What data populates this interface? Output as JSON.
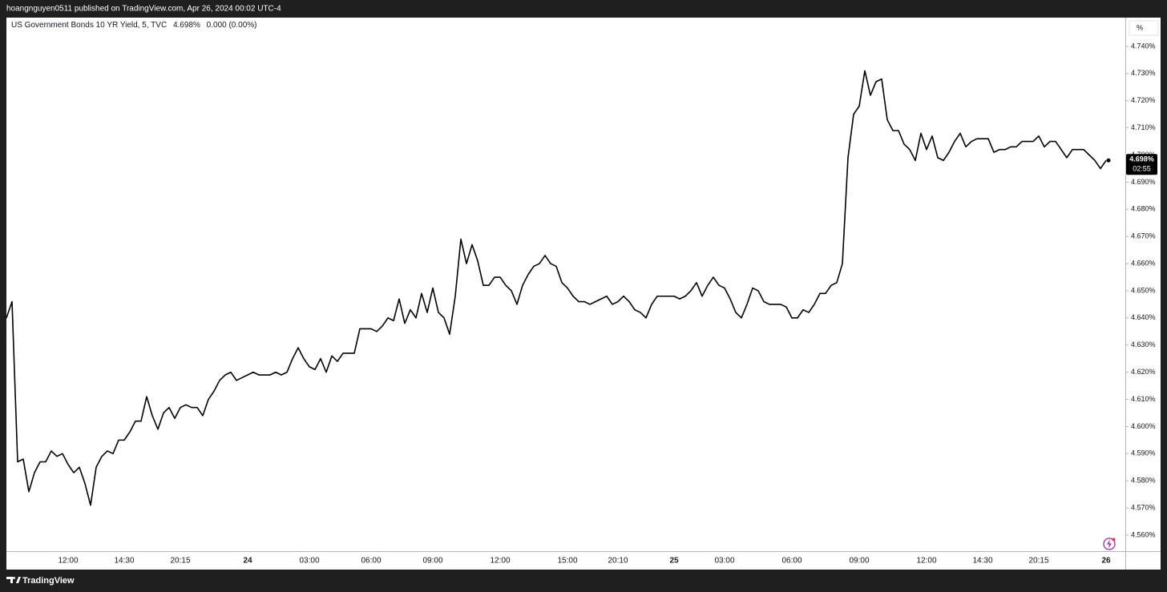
{
  "header": {
    "text": "hoangnguyen0511 published on TradingView.com, Apr 26, 2024 00:02 UTC-4"
  },
  "footer": {
    "brand": "TradingView"
  },
  "chart_data": {
    "type": "line",
    "title": "US Government Bonds 10 YR Yield, 5, TVC",
    "legend_value": "4.698%",
    "legend_change": "0.000 (0.00%)",
    "price_label": "4.698%",
    "countdown": "02:55",
    "y_unit": "%",
    "color": "#000000",
    "grid": false,
    "ylim": [
      4.5541,
      4.7506
    ],
    "yticks": [
      {
        "value": 4.56,
        "label": "4.560%"
      },
      {
        "value": 4.57,
        "label": "4.570%"
      },
      {
        "value": 4.58,
        "label": "4.580%"
      },
      {
        "value": 4.59,
        "label": "4.590%"
      },
      {
        "value": 4.6,
        "label": "4.600%"
      },
      {
        "value": 4.61,
        "label": "4.610%"
      },
      {
        "value": 4.62,
        "label": "4.620%"
      },
      {
        "value": 4.63,
        "label": "4.630%"
      },
      {
        "value": 4.64,
        "label": "4.640%"
      },
      {
        "value": 4.65,
        "label": "4.650%"
      },
      {
        "value": 4.66,
        "label": "4.660%"
      },
      {
        "value": 4.67,
        "label": "4.670%"
      },
      {
        "value": 4.68,
        "label": "4.680%"
      },
      {
        "value": 4.69,
        "label": "4.690%"
      },
      {
        "value": 4.7,
        "label": "4.700%"
      },
      {
        "value": 4.71,
        "label": "4.710%"
      },
      {
        "value": 4.72,
        "label": "4.720%"
      },
      {
        "value": 4.73,
        "label": "4.730%"
      },
      {
        "value": 4.74,
        "label": "4.740%"
      }
    ],
    "categories": [
      null,
      null,
      null,
      null,
      null,
      null,
      null,
      null,
      null,
      null,
      null,
      "12:00",
      null,
      null,
      null,
      null,
      null,
      null,
      null,
      null,
      null,
      "14:30",
      null,
      null,
      null,
      null,
      null,
      null,
      null,
      null,
      null,
      "20:15",
      null,
      null,
      null,
      null,
      null,
      null,
      null,
      null,
      null,
      null,
      null,
      "24",
      null,
      null,
      null,
      null,
      null,
      null,
      null,
      null,
      null,
      null,
      "03:00",
      null,
      null,
      null,
      null,
      null,
      null,
      null,
      null,
      null,
      null,
      "06:00",
      null,
      null,
      null,
      null,
      null,
      null,
      null,
      null,
      null,
      null,
      "09:00",
      null,
      null,
      null,
      null,
      null,
      null,
      null,
      null,
      null,
      null,
      null,
      "12:00",
      null,
      null,
      null,
      null,
      null,
      null,
      null,
      null,
      null,
      null,
      null,
      "15:00",
      null,
      null,
      null,
      null,
      null,
      null,
      null,
      null,
      "20:10",
      null,
      null,
      null,
      null,
      null,
      null,
      null,
      null,
      null,
      "25",
      null,
      null,
      null,
      null,
      null,
      null,
      null,
      null,
      "03:00",
      null,
      null,
      null,
      null,
      null,
      null,
      null,
      null,
      null,
      null,
      null,
      "06:00",
      null,
      null,
      null,
      null,
      null,
      null,
      null,
      null,
      null,
      null,
      null,
      "09:00",
      null,
      null,
      null,
      null,
      null,
      null,
      null,
      null,
      null,
      null,
      null,
      "12:00",
      null,
      null,
      null,
      null,
      null,
      null,
      null,
      null,
      null,
      "14:30",
      null,
      null,
      null,
      null,
      null,
      null,
      null,
      null,
      null,
      "20:15",
      null,
      null,
      null,
      null,
      null,
      null,
      null,
      null,
      null,
      null,
      null,
      "26"
    ],
    "values": [
      4.64,
      4.646,
      4.587,
      4.588,
      4.576,
      4.583,
      4.587,
      4.587,
      4.591,
      4.589,
      4.59,
      4.586,
      4.583,
      4.585,
      4.579,
      4.571,
      4.585,
      4.589,
      4.591,
      4.59,
      4.595,
      4.595,
      4.598,
      4.602,
      4.602,
      4.611,
      4.604,
      4.599,
      4.605,
      4.607,
      4.603,
      4.607,
      4.608,
      4.607,
      4.607,
      4.604,
      4.61,
      4.613,
      4.617,
      4.619,
      4.62,
      4.617,
      4.618,
      4.619,
      4.62,
      4.619,
      4.619,
      4.619,
      4.62,
      4.619,
      4.62,
      4.625,
      4.629,
      4.625,
      4.622,
      4.621,
      4.625,
      4.62,
      4.626,
      4.624,
      4.627,
      4.627,
      4.627,
      4.636,
      4.636,
      4.636,
      4.635,
      4.637,
      4.64,
      4.639,
      4.647,
      4.638,
      4.643,
      4.64,
      4.649,
      4.642,
      4.651,
      4.642,
      4.64,
      4.634,
      4.648,
      4.669,
      4.66,
      4.667,
      4.661,
      4.652,
      4.652,
      4.655,
      4.655,
      4.652,
      4.65,
      4.645,
      4.652,
      4.656,
      4.659,
      4.66,
      4.663,
      4.66,
      4.659,
      4.653,
      4.651,
      4.648,
      4.646,
      4.646,
      4.645,
      4.646,
      4.647,
      4.648,
      4.645,
      4.646,
      4.648,
      4.646,
      4.643,
      4.642,
      4.64,
      4.645,
      4.648,
      4.648,
      4.648,
      4.648,
      4.647,
      4.648,
      4.65,
      4.653,
      4.648,
      4.652,
      4.655,
      4.652,
      4.651,
      4.647,
      4.642,
      4.64,
      4.645,
      4.651,
      4.65,
      4.646,
      4.645,
      4.645,
      4.645,
      4.644,
      4.64,
      4.64,
      4.643,
      4.642,
      4.645,
      4.649,
      4.649,
      4.652,
      4.653,
      4.66,
      4.699,
      4.715,
      4.718,
      4.731,
      4.722,
      4.727,
      4.728,
      4.713,
      4.709,
      4.709,
      4.704,
      4.702,
      4.698,
      4.708,
      4.702,
      4.707,
      4.699,
      4.698,
      4.701,
      4.705,
      4.708,
      4.703,
      4.705,
      4.706,
      4.706,
      4.706,
      4.701,
      4.702,
      4.702,
      4.703,
      4.703,
      4.705,
      4.705,
      4.705,
      4.707,
      4.703,
      4.705,
      4.705,
      4.702,
      4.699,
      4.702,
      4.702,
      4.702,
      4.7,
      4.698,
      4.695,
      4.698
    ]
  }
}
